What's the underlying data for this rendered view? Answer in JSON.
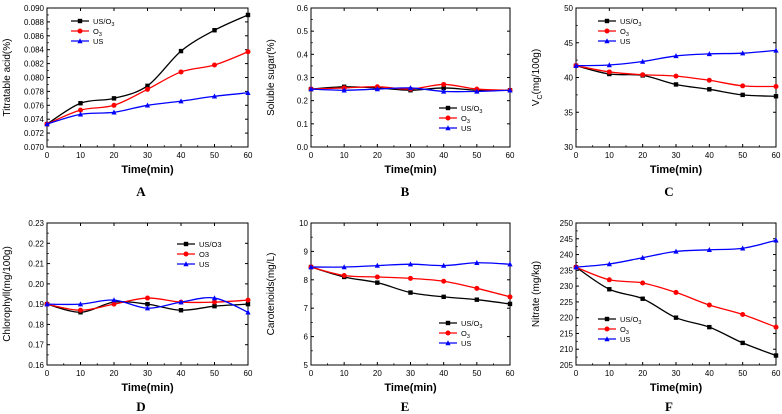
{
  "chart_data": [
    {
      "type": "line",
      "panel": "A",
      "title": "",
      "xlabel": "Time(min)",
      "ylabel": "Titratable acid(%)",
      "x": [
        0,
        10,
        20,
        30,
        40,
        50,
        60
      ],
      "xlim": [
        0,
        60
      ],
      "ylim": [
        0.07,
        0.09
      ],
      "xticks": [
        "0",
        "10",
        "20",
        "30",
        "40",
        "50",
        "60"
      ],
      "yticks": [
        "0.070",
        "0.072",
        "0.074",
        "0.076",
        "0.078",
        "0.080",
        "0.082",
        "0.084",
        "0.086",
        "0.088",
        "0.090"
      ],
      "legend": "top-left",
      "series": [
        {
          "name": "US/O3",
          "label": "US/O",
          "sub": "3",
          "color": "#000000",
          "marker": "square",
          "values": [
            0.0733,
            0.0763,
            0.077,
            0.0788,
            0.0838,
            0.0868,
            0.089
          ]
        },
        {
          "name": "O3",
          "label": "O",
          "sub": "3",
          "color": "#ff0000",
          "marker": "circle",
          "values": [
            0.0733,
            0.0753,
            0.076,
            0.0783,
            0.0808,
            0.0818,
            0.0837
          ]
        },
        {
          "name": "US",
          "label": "US",
          "sub": "",
          "color": "#0000ff",
          "marker": "triangle",
          "values": [
            0.0733,
            0.0747,
            0.075,
            0.076,
            0.0766,
            0.0773,
            0.0778
          ]
        }
      ]
    },
    {
      "type": "line",
      "panel": "B",
      "title": "",
      "xlabel": "Time(min)",
      "ylabel": "Soluble sugar(%)",
      "x": [
        0,
        10,
        20,
        30,
        40,
        50,
        60
      ],
      "xlim": [
        0,
        60
      ],
      "ylim": [
        0,
        0.6
      ],
      "xticks": [
        "0",
        "10",
        "20",
        "30",
        "40",
        "50",
        "60"
      ],
      "yticks": [
        "0.0",
        "0.1",
        "0.2",
        "0.3",
        "0.4",
        "0.5",
        "0.6"
      ],
      "legend": "bottom-right",
      "series": [
        {
          "name": "US/O3",
          "label": "US/O",
          "sub": "3",
          "color": "#000000",
          "marker": "square",
          "values": [
            0.25,
            0.26,
            0.255,
            0.245,
            0.255,
            0.245,
            0.245
          ]
        },
        {
          "name": "O3",
          "label": "O",
          "sub": "3",
          "color": "#ff0000",
          "marker": "circle",
          "values": [
            0.25,
            0.255,
            0.26,
            0.25,
            0.27,
            0.25,
            0.245
          ]
        },
        {
          "name": "US",
          "label": "US",
          "sub": "",
          "color": "#0000ff",
          "marker": "triangle",
          "values": [
            0.25,
            0.245,
            0.25,
            0.255,
            0.24,
            0.24,
            0.245
          ]
        }
      ]
    },
    {
      "type": "line",
      "panel": "C",
      "title": "",
      "xlabel": "Time(min)",
      "ylabel": "V",
      "ylabel_sub": "C",
      "ylabel_rest": "(mg/100g)",
      "x": [
        0,
        10,
        20,
        30,
        40,
        50,
        60
      ],
      "xlim": [
        0,
        60
      ],
      "ylim": [
        30,
        50
      ],
      "xticks": [
        "0",
        "10",
        "20",
        "30",
        "40",
        "50",
        "60"
      ],
      "yticks": [
        "30",
        "35",
        "40",
        "45",
        "50"
      ],
      "legend": "top-left",
      "series": [
        {
          "name": "US/O3",
          "label": "US/O",
          "sub": "3",
          "color": "#000000",
          "marker": "square",
          "values": [
            41.7,
            40.5,
            40.3,
            39.0,
            38.3,
            37.5,
            37.3
          ]
        },
        {
          "name": "O3",
          "label": "O",
          "sub": "3",
          "color": "#ff0000",
          "marker": "circle",
          "values": [
            41.7,
            40.8,
            40.4,
            40.2,
            39.6,
            38.8,
            38.7
          ]
        },
        {
          "name": "US",
          "label": "US",
          "sub": "",
          "color": "#0000ff",
          "marker": "triangle",
          "values": [
            41.7,
            41.8,
            42.3,
            43.1,
            43.4,
            43.5,
            43.9
          ]
        }
      ]
    },
    {
      "type": "line",
      "panel": "D",
      "title": "",
      "xlabel": "Time(min)",
      "ylabel": "Chlorophyll(mg/100g)",
      "x": [
        0,
        10,
        20,
        30,
        40,
        50,
        60
      ],
      "xlim": [
        0,
        60
      ],
      "ylim": [
        0.16,
        0.23
      ],
      "xticks": [
        "0",
        "10",
        "20",
        "30",
        "40",
        "50",
        "60"
      ],
      "yticks": [
        "0.16",
        "0.17",
        "0.18",
        "0.19",
        "0.20",
        "0.21",
        "0.22",
        "0.23"
      ],
      "legend": "top-right",
      "series": [
        {
          "name": "US/O3",
          "label": "US/O3",
          "sub": "",
          "color": "#000000",
          "marker": "square",
          "values": [
            0.19,
            0.186,
            0.191,
            0.19,
            0.187,
            0.189,
            0.19
          ]
        },
        {
          "name": "O3",
          "label": "O3",
          "sub": "",
          "color": "#ff0000",
          "marker": "circle",
          "values": [
            0.19,
            0.187,
            0.19,
            0.193,
            0.191,
            0.191,
            0.192
          ]
        },
        {
          "name": "US",
          "label": "US",
          "sub": "",
          "color": "#0000ff",
          "marker": "triangle",
          "values": [
            0.19,
            0.19,
            0.192,
            0.188,
            0.191,
            0.193,
            0.186
          ]
        }
      ]
    },
    {
      "type": "line",
      "panel": "E",
      "title": "",
      "xlabel": "Time(min)",
      "ylabel": "Carotenoids(mg/L)",
      "x": [
        0,
        10,
        20,
        30,
        40,
        50,
        60
      ],
      "xlim": [
        0,
        60
      ],
      "ylim": [
        5,
        10
      ],
      "xticks": [
        "0",
        "10",
        "20",
        "30",
        "40",
        "50",
        "60"
      ],
      "yticks": [
        "5",
        "6",
        "7",
        "8",
        "9",
        "10"
      ],
      "legend": "bottom-right",
      "series": [
        {
          "name": "US/O3",
          "label": "US/O",
          "sub": "3",
          "color": "#000000",
          "marker": "square",
          "values": [
            8.45,
            8.1,
            7.9,
            7.55,
            7.4,
            7.3,
            7.15
          ]
        },
        {
          "name": "O3",
          "label": "O",
          "sub": "3",
          "color": "#ff0000",
          "marker": "circle",
          "values": [
            8.45,
            8.15,
            8.1,
            8.05,
            7.95,
            7.7,
            7.4
          ]
        },
        {
          "name": "US",
          "label": "US",
          "sub": "",
          "color": "#0000ff",
          "marker": "triangle",
          "values": [
            8.45,
            8.45,
            8.5,
            8.55,
            8.5,
            8.6,
            8.55
          ]
        }
      ]
    },
    {
      "type": "line",
      "panel": "F",
      "title": "",
      "xlabel": "Time(min)",
      "ylabel": "Nitrate (mg/kg)",
      "x": [
        0,
        10,
        20,
        30,
        40,
        50,
        60
      ],
      "xlim": [
        0,
        60
      ],
      "ylim": [
        205,
        250
      ],
      "xticks": [
        "0",
        "10",
        "20",
        "30",
        "40",
        "50",
        "60"
      ],
      "yticks": [
        "205",
        "210",
        "215",
        "220",
        "225",
        "230",
        "235",
        "240",
        "245",
        "250"
      ],
      "legend": "bottom-left",
      "series": [
        {
          "name": "US/O3",
          "label": "US/O",
          "sub": "3",
          "color": "#000000",
          "marker": "square",
          "values": [
            236,
            229,
            226,
            220,
            217,
            212,
            208
          ]
        },
        {
          "name": "O3",
          "label": "O",
          "sub": "3",
          "color": "#ff0000",
          "marker": "circle",
          "values": [
            236,
            232,
            231,
            228,
            224,
            221,
            217
          ]
        },
        {
          "name": "US",
          "label": "US",
          "sub": "",
          "color": "#0000ff",
          "marker": "triangle",
          "values": [
            236,
            237,
            239,
            241,
            241.5,
            242,
            244.5
          ]
        }
      ]
    }
  ]
}
